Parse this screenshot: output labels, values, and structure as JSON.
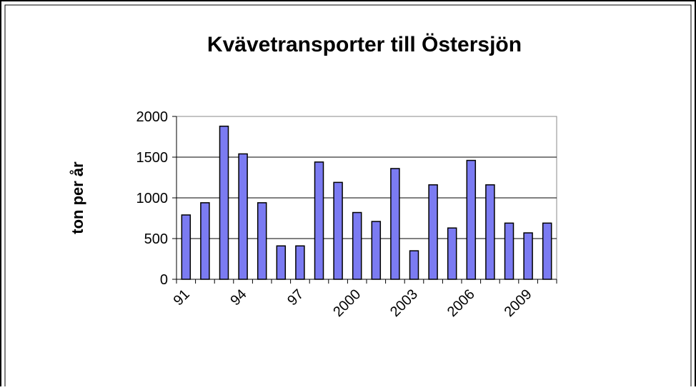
{
  "chart_data": {
    "type": "bar",
    "title": "Kvävetransporter till Östersjön",
    "y_label": "ton per år",
    "categories": [
      "91",
      null,
      null,
      "94",
      null,
      null,
      "97",
      null,
      null,
      "2000",
      null,
      null,
      "2003",
      null,
      null,
      "2006",
      null,
      null,
      "2009",
      null
    ],
    "values": [
      790,
      940,
      1880,
      1540,
      940,
      410,
      410,
      1440,
      1190,
      820,
      710,
      1360,
      350,
      1160,
      630,
      1460,
      1160,
      690,
      570,
      690
    ],
    "color": "#7b7bf2",
    "ylim": [
      0,
      2000
    ],
    "yticks": [
      0,
      500,
      1000,
      1500,
      2000
    ],
    "grid": true
  }
}
